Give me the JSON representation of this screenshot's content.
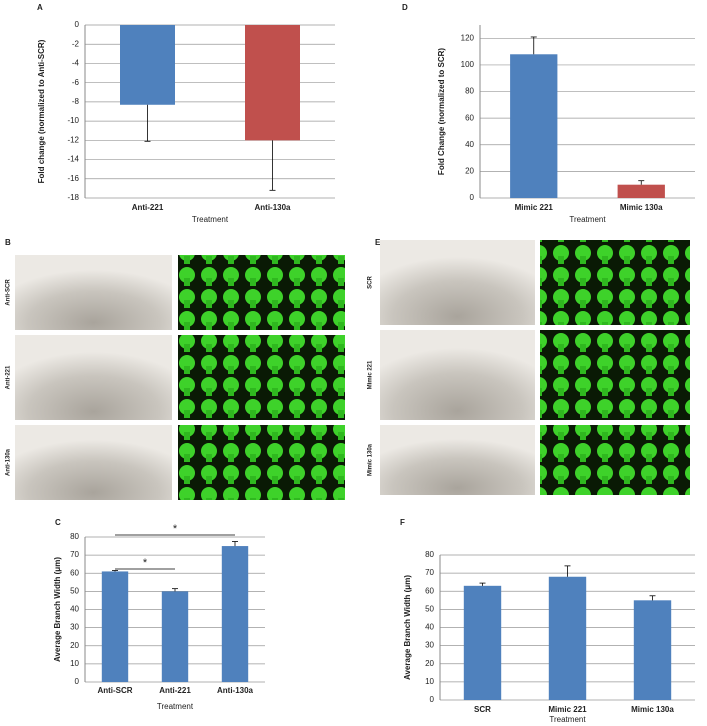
{
  "chart_data": [
    {
      "panel": "A",
      "type": "bar",
      "categories": [
        "Anti-221",
        "Anti-130a"
      ],
      "values": [
        -8.3,
        -12
      ],
      "errors": [
        3.8,
        5.2
      ],
      "colors": [
        "#4f81bd",
        "#c0504d"
      ],
      "ylim": [
        -18,
        0
      ],
      "yticks": [
        -18,
        -16,
        -14,
        -12,
        -10,
        -8,
        -6,
        -4,
        -2,
        0
      ],
      "ylabel": "Fold change (normalized to Anti-SCR)",
      "xlabel": "Treatment",
      "grid": true
    },
    {
      "panel": "D",
      "type": "bar",
      "categories": [
        "Mimic 221",
        "Mimic 130a"
      ],
      "values": [
        108,
        10
      ],
      "errors": [
        13,
        3
      ],
      "colors": [
        "#4f81bd",
        "#c0504d"
      ],
      "ylim": [
        0,
        130
      ],
      "yticks": [
        0,
        20,
        40,
        60,
        80,
        100,
        120
      ],
      "ylabel": "Fold Change (normalized to SCR)",
      "xlabel": "Treatment",
      "grid": true
    },
    {
      "panel": "C",
      "type": "bar",
      "categories": [
        "Anti-SCR",
        "Anti-221",
        "Anti-130a"
      ],
      "values": [
        61,
        50,
        75
      ],
      "errors": [
        0.5,
        1.5,
        2.5
      ],
      "color": "#4f81bd",
      "ylim": [
        0,
        80
      ],
      "yticks": [
        0,
        10,
        20,
        30,
        40,
        50,
        60,
        70,
        80
      ],
      "ylabel": "Average Branch Width (μm)",
      "xlabel": "Treatment",
      "grid": true,
      "annotations": [
        "*",
        "*"
      ]
    },
    {
      "panel": "F",
      "type": "bar",
      "categories": [
        "SCR",
        "Mimic 221",
        "Mimic 130a"
      ],
      "values": [
        63,
        68,
        55
      ],
      "errors": [
        1.5,
        6,
        2.5
      ],
      "color": "#4f81bd",
      "ylim": [
        0,
        80
      ],
      "yticks": [
        0,
        10,
        20,
        30,
        40,
        50,
        60,
        70,
        80
      ],
      "ylabel": "Average Branch Width (μm)",
      "xlabel": "Treatment",
      "grid": true
    }
  ],
  "image_panels": [
    {
      "panel": "B",
      "rows": [
        "Anti-SCR",
        "Anti-221",
        "Anti-130a"
      ]
    },
    {
      "panel": "E",
      "rows": [
        "SCR",
        "Mimic 221",
        "Mimic 130a"
      ]
    }
  ]
}
